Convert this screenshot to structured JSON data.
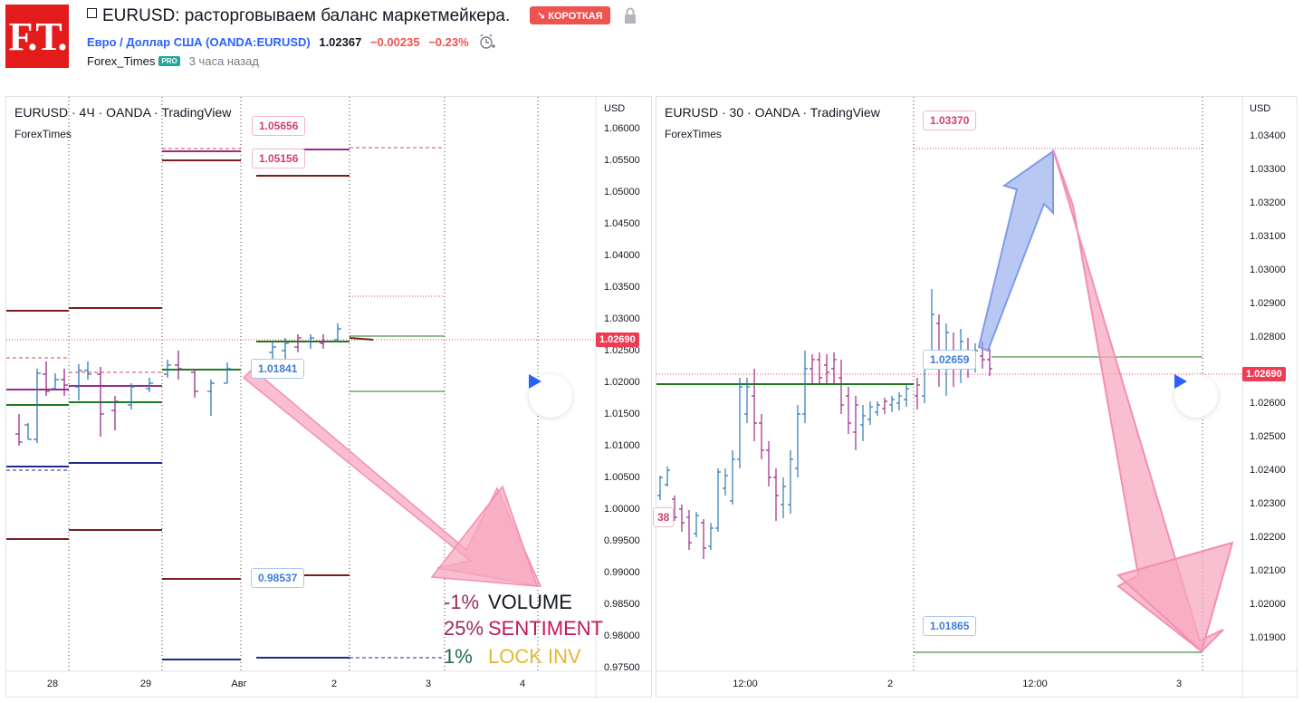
{
  "header": {
    "logo_text": "F.T.",
    "title": "EURUSD: расторговываем баланс маркетмейкера.",
    "badge": "↘ КОРОТКАЯ",
    "symbol_link": "Евро / Доллар США (OANDA:EURUSD)",
    "price": "1.02367",
    "change": "−0.00235",
    "change_pct": "−0.23%",
    "author": "Forex_Times",
    "author_badge": "PRO",
    "time_ago": "3 часа назад"
  },
  "left_chart": {
    "legend": "EURUSD · 4Ч · OANDA · TradingView",
    "watermark": "ForexTimes",
    "currency": "USD",
    "current_price": "1.02690",
    "y_ticks": [
      "1.06000",
      "1.05500",
      "1.05000",
      "1.04500",
      "1.04000",
      "1.03500",
      "1.03000",
      "1.02500",
      "1.02000",
      "1.01500",
      "1.01000",
      "1.00500",
      "1.00000",
      "0.99500",
      "0.99000",
      "0.98500",
      "0.98000",
      "0.97500"
    ],
    "x_ticks": [
      "28",
      "29",
      "Авг",
      "2",
      "3",
      "4"
    ],
    "callouts": [
      "1.05656",
      "1.05156",
      "1.01841",
      "0.98537"
    ],
    "stats": [
      {
        "value": "-1%",
        "label": "VOLUME"
      },
      {
        "value": "25%",
        "label": "SENTIMENT"
      },
      {
        "value": "1%",
        "label": "LOCK INV"
      }
    ]
  },
  "right_chart": {
    "legend": "EURUSD · 30 · OANDA · TradingView",
    "watermark": "ForexTimes",
    "currency": "USD",
    "current_price": "1.02690",
    "y_ticks": [
      "1.03400",
      "1.03300",
      "1.03200",
      "1.03100",
      "1.03000",
      "1.02900",
      "1.02800",
      "1.02700",
      "1.02600",
      "1.02500",
      "1.02400",
      "1.02300",
      "1.02200",
      "1.02100",
      "1.02000",
      "1.01900"
    ],
    "x_ticks": [
      "12:00",
      "2",
      "12:00",
      "3"
    ],
    "callouts": [
      "1.03370",
      "1.02659",
      "1.01865"
    ],
    "cut_label": "38"
  },
  "colors": {
    "accent": "#2962ff",
    "down": "#ef5350",
    "current_price": "#ef3b54",
    "arrow_pink": "#f7a8bf",
    "arrow_blue": "#7f9be8",
    "level_maroon": "#7a1f1f",
    "level_green": "#1f7a1f",
    "level_navy": "#1f2a8f",
    "level_purple": "#9c2a8a"
  },
  "icons": [
    "lock-icon",
    "alarm-icon",
    "play-icon"
  ]
}
